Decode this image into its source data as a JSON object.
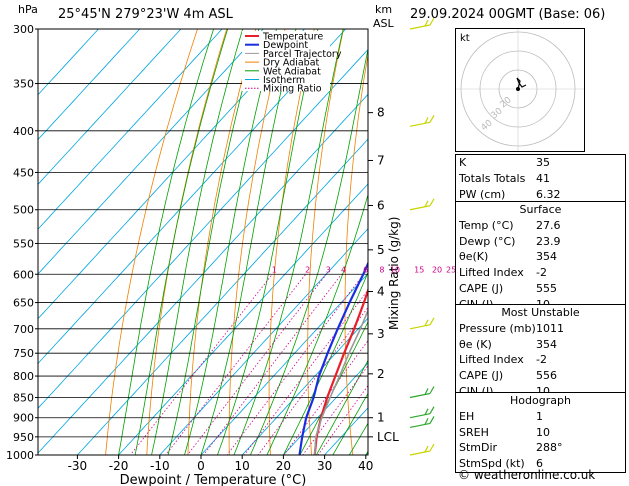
{
  "header": {
    "pressure_unit": "hPa",
    "location": "25°45'N  279°23'W  4m  ASL",
    "height_unit_km": "km",
    "height_unit_asl": "ASL",
    "date": "29.09.2024  00GMT  (Base: 06)"
  },
  "chart_data": {
    "type": "skew-t",
    "xlabel": "Dewpoint / Temperature (°C)",
    "ylabel": "hPa",
    "right_axis_label": "Mixing Ratio (g/kg)",
    "pressure_ticks": [
      300,
      350,
      400,
      450,
      500,
      550,
      600,
      650,
      700,
      750,
      800,
      850,
      900,
      950,
      1000
    ],
    "temp_ticks": [
      -30,
      -20,
      -10,
      0,
      10,
      20,
      30,
      40
    ],
    "height_km_ticks": [
      {
        "label": "8",
        "p": 380
      },
      {
        "label": "7",
        "p": 435
      },
      {
        "label": "6",
        "p": 494
      },
      {
        "label": "5",
        "p": 560
      },
      {
        "label": "4",
        "p": 630
      },
      {
        "label": "3",
        "p": 710
      },
      {
        "label": "2",
        "p": 795
      },
      {
        "label": "1",
        "p": 900
      },
      {
        "label": "LCL",
        "p": 950
      }
    ],
    "mixing_ratio_labels": [
      "1",
      "2",
      "3",
      "4",
      "6",
      "8",
      "10",
      "15",
      "20",
      "25"
    ],
    "mixing_ratio_values": [
      1,
      2,
      3,
      4,
      6,
      8,
      10,
      15,
      20,
      25
    ],
    "legend": [
      "Temperature",
      "Dewpoint",
      "Parcel Trajectory",
      "Dry Adiabat",
      "Wet Adiabat",
      "Isotherm",
      "Mixing Ratio"
    ],
    "series": [
      {
        "name": "Temperature",
        "color": "#e8202a",
        "points": [
          [
            1000,
            27.6
          ],
          [
            950,
            24.0
          ],
          [
            900,
            20.8
          ],
          [
            850,
            17.8
          ],
          [
            800,
            15.0
          ],
          [
            750,
            12.0
          ],
          [
            700,
            9.0
          ],
          [
            650,
            5.5
          ],
          [
            600,
            1.5
          ],
          [
            550,
            -3.0
          ],
          [
            500,
            -7.5
          ],
          [
            450,
            -13.0
          ],
          [
            400,
            -19.5
          ],
          [
            350,
            -27.0
          ]
        ]
      },
      {
        "name": "Dewpoint",
        "color": "#1a2ee0",
        "points": [
          [
            1000,
            23.9
          ],
          [
            950,
            20.5
          ],
          [
            900,
            17.2
          ],
          [
            850,
            14.5
          ],
          [
            800,
            11.0
          ],
          [
            750,
            8.0
          ],
          [
            700,
            5.0
          ],
          [
            650,
            2.0
          ],
          [
            600,
            -1.0
          ],
          [
            550,
            -4.5
          ],
          [
            500,
            -8.0
          ],
          [
            450,
            -14.0
          ],
          [
            400,
            -20.5
          ],
          [
            350,
            -28.5
          ]
        ]
      },
      {
        "name": "Parcel Trajectory",
        "color": "#9a9a9a",
        "points": [
          [
            1000,
            27.6
          ],
          [
            950,
            23.8
          ],
          [
            900,
            21.0
          ],
          [
            850,
            18.5
          ],
          [
            800,
            16.0
          ],
          [
            750,
            13.2
          ],
          [
            700,
            10.5
          ],
          [
            650,
            7.3
          ],
          [
            600,
            3.8
          ],
          [
            550,
            0.0
          ],
          [
            500,
            -4.5
          ],
          [
            450,
            -9.5
          ],
          [
            400,
            -15.5
          ],
          [
            350,
            -23.0
          ]
        ]
      }
    ],
    "wind_barbs": [
      {
        "p": 300,
        "color": "#c8d400"
      },
      {
        "p": 395,
        "color": "#c8d400"
      },
      {
        "p": 500,
        "color": "#c8d400"
      },
      {
        "p": 700,
        "color": "#c8d400"
      },
      {
        "p": 850,
        "color": "#2ea82e"
      },
      {
        "p": 900,
        "color": "#2ea82e"
      },
      {
        "p": 925,
        "color": "#2ea82e"
      },
      {
        "p": 1000,
        "color": "#c8d400"
      }
    ],
    "colors": {
      "dry_adiabat": "#f08000",
      "wet_adiabat": "#00a000",
      "isotherm": "#00a6e0",
      "mixing_ratio": "#d0008a"
    }
  },
  "hodograph": {
    "unit": "kt",
    "ring_labels": [
      "40",
      "30",
      "20"
    ]
  },
  "indices": [
    {
      "k": "K",
      "v": "35"
    },
    {
      "k": "Totals Totals",
      "v": "41"
    },
    {
      "k": "PW (cm)",
      "v": "6.32"
    }
  ],
  "surface": {
    "title": "Surface",
    "rows": [
      {
        "k": "Temp (°C)",
        "v": "27.6"
      },
      {
        "k": "Dewp (°C)",
        "v": "23.9"
      },
      {
        "k": "θe(K)",
        "v": "354"
      },
      {
        "k": "Lifted Index",
        "v": "-2"
      },
      {
        "k": "CAPE (J)",
        "v": "555"
      },
      {
        "k": "CIN (J)",
        "v": "10"
      }
    ]
  },
  "most_unstable": {
    "title": "Most Unstable",
    "rows": [
      {
        "k": "Pressure (mb)",
        "v": "1011"
      },
      {
        "k": "θe (K)",
        "v": "354"
      },
      {
        "k": "Lifted Index",
        "v": "-2"
      },
      {
        "k": "CAPE (J)",
        "v": "556"
      },
      {
        "k": "CIN (J)",
        "v": "10"
      }
    ]
  },
  "hodograph_table": {
    "title": "Hodograph",
    "rows": [
      {
        "k": "EH",
        "v": "1"
      },
      {
        "k": "SREH",
        "v": "10"
      },
      {
        "k": "StmDir",
        "v": "288°"
      },
      {
        "k": "StmSpd (kt)",
        "v": "6"
      }
    ]
  },
  "footer": "© weatheronline.co.uk"
}
